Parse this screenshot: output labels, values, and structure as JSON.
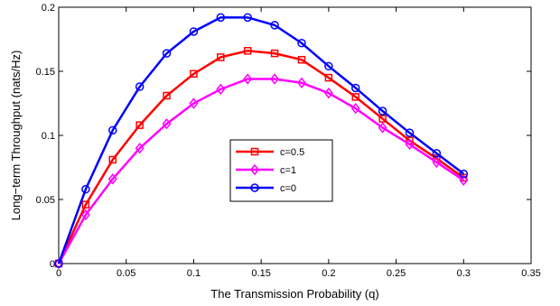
{
  "chart_data": {
    "type": "line",
    "xlabel": "The Transmission Probability (q)",
    "ylabel": "Long−term Throughput (nats/Hz)",
    "xlim": [
      0,
      0.35
    ],
    "ylim": [
      0,
      0.2
    ],
    "xticks": [
      0,
      0.05,
      0.1,
      0.15,
      0.2,
      0.25,
      0.3,
      0.35
    ],
    "yticks": [
      0,
      0.05,
      0.1,
      0.15,
      0.2
    ],
    "xtick_labels": [
      "0",
      "0.05",
      "0.1",
      "0.15",
      "0.2",
      "0.25",
      "0.3",
      "0.35"
    ],
    "ytick_labels": [
      "0",
      "0.05",
      "0.1",
      "0.15",
      "0.2"
    ],
    "grid": false,
    "legend_position": "center",
    "x": [
      0,
      0.02,
      0.04,
      0.06,
      0.08,
      0.1,
      0.12,
      0.14,
      0.16,
      0.18,
      0.2,
      0.22,
      0.24,
      0.26,
      0.28,
      0.3
    ],
    "series": [
      {
        "name": "c=0.5",
        "color": "#ff0000",
        "marker": "square",
        "values": [
          0,
          0.046,
          0.081,
          0.108,
          0.131,
          0.148,
          0.161,
          0.166,
          0.164,
          0.159,
          0.145,
          0.13,
          0.113,
          0.096,
          0.082,
          0.067
        ]
      },
      {
        "name": "c=1",
        "color": "#ff00ff",
        "marker": "diamond",
        "values": [
          0,
          0.038,
          0.066,
          0.09,
          0.109,
          0.125,
          0.136,
          0.144,
          0.144,
          0.141,
          0.133,
          0.121,
          0.106,
          0.093,
          0.079,
          0.065
        ]
      },
      {
        "name": "c=0",
        "color": "#0000ff",
        "marker": "circle",
        "values": [
          0,
          0.058,
          0.104,
          0.138,
          0.164,
          0.181,
          0.192,
          0.192,
          0.186,
          0.172,
          0.154,
          0.137,
          0.119,
          0.102,
          0.086,
          0.07
        ]
      }
    ]
  }
}
